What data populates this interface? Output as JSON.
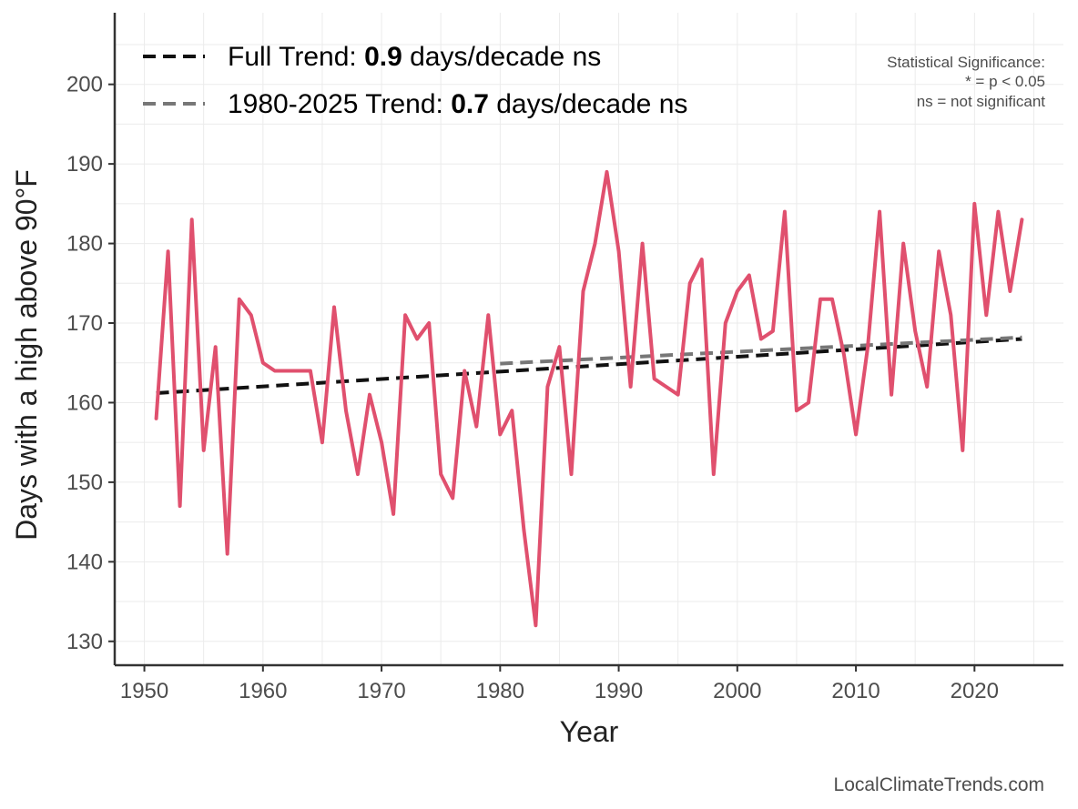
{
  "chart_data": {
    "type": "line",
    "xlabel": "Year",
    "ylabel": "Days with a high above 90°F",
    "xlim": [
      1947.5,
      2027.5
    ],
    "ylim": [
      127,
      209
    ],
    "xticks": [
      1950,
      1960,
      1970,
      1980,
      1990,
      2000,
      2010,
      2020
    ],
    "yticks": [
      130,
      140,
      150,
      160,
      170,
      180,
      190,
      200
    ],
    "grid": true,
    "legend_position": "top-left",
    "series": [
      {
        "color": "#e0506e",
        "x": [
          1951,
          1952,
          1953,
          1954,
          1955,
          1956,
          1957,
          1958,
          1959,
          1960,
          1961,
          1962,
          1963,
          1964,
          1965,
          1966,
          1967,
          1968,
          1969,
          1970,
          1971,
          1972,
          1973,
          1974,
          1975,
          1976,
          1977,
          1978,
          1979,
          1980,
          1981,
          1982,
          1983,
          1984,
          1985,
          1986,
          1987,
          1988,
          1989,
          1990,
          1991,
          1992,
          1993,
          1994,
          1995,
          1996,
          1997,
          1998,
          1999,
          2000,
          2001,
          2002,
          2003,
          2004,
          2005,
          2006,
          2007,
          2008,
          2009,
          2010,
          2011,
          2012,
          2013,
          2014,
          2015,
          2016,
          2017,
          2018,
          2019,
          2020,
          2021,
          2022,
          2023,
          2024
        ],
        "values": [
          158,
          179,
          147,
          183,
          154,
          167,
          141,
          173,
          171,
          165,
          164,
          164,
          164,
          164,
          155,
          172,
          159,
          151,
          161,
          155,
          146,
          171,
          168,
          170,
          151,
          148,
          164,
          157,
          171,
          156,
          159,
          144,
          132,
          162,
          167,
          151,
          174,
          180,
          189,
          179,
          162,
          180,
          163,
          162,
          161,
          175,
          178,
          151,
          170,
          174,
          176,
          168,
          169,
          184,
          159,
          160,
          173,
          173,
          166,
          156,
          167,
          184,
          161,
          180,
          169,
          162,
          179,
          171,
          154,
          185,
          171,
          184,
          174,
          183
        ]
      }
    ],
    "trends": [
      {
        "label_prefix": "Full Trend: ",
        "value": "0.9",
        "label_suffix": " days/decade ns",
        "color": "#111111",
        "x": [
          1951,
          2024
        ],
        "y": [
          161.2,
          168.0
        ]
      },
      {
        "label_prefix": "1980-2025 Trend: ",
        "value": "0.7",
        "label_suffix": " days/decade ns",
        "color": "#777777",
        "x": [
          1980,
          2024
        ],
        "y": [
          164.9,
          168.2
        ]
      }
    ],
    "significance_note": [
      "Statistical Significance:",
      "* = p < 0.05",
      "ns = not significant"
    ],
    "credit": "LocalClimateTrends.com"
  },
  "colors": {
    "axis": "#333333",
    "grid": "#ebebeb",
    "series": "#e0506e",
    "full_trend": "#111111",
    "recent_trend": "#777777"
  }
}
